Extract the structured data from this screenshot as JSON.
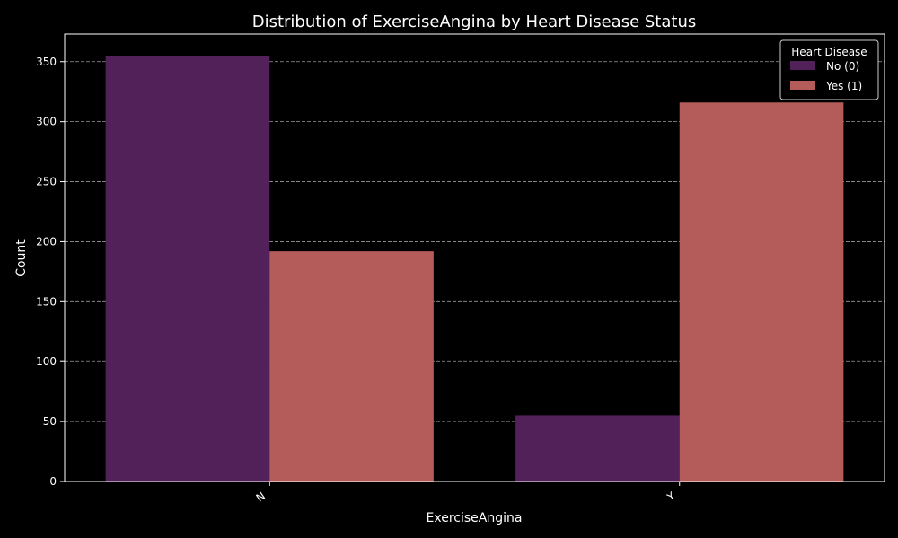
{
  "chart_data": {
    "type": "bar",
    "title": "Distribution of ExerciseAngina by Heart Disease Status",
    "xlabel": "ExerciseAngina",
    "ylabel": "Count",
    "categories": [
      "N",
      "Y"
    ],
    "series": [
      {
        "name": "No (0)",
        "values": [
          355,
          55
        ],
        "color": "#52215a"
      },
      {
        "name": "Yes (1)",
        "values": [
          192,
          316
        ],
        "color": "#b35c5a"
      }
    ],
    "legend_title": "Heart Disease",
    "legend_position": "top-right",
    "ylim": [
      0,
      373
    ],
    "yticks": [
      0,
      50,
      100,
      150,
      200,
      250,
      300,
      350
    ],
    "grid": true,
    "background_color": "#000000",
    "text_color": "#ffffff",
    "grid_color": "#999999"
  }
}
